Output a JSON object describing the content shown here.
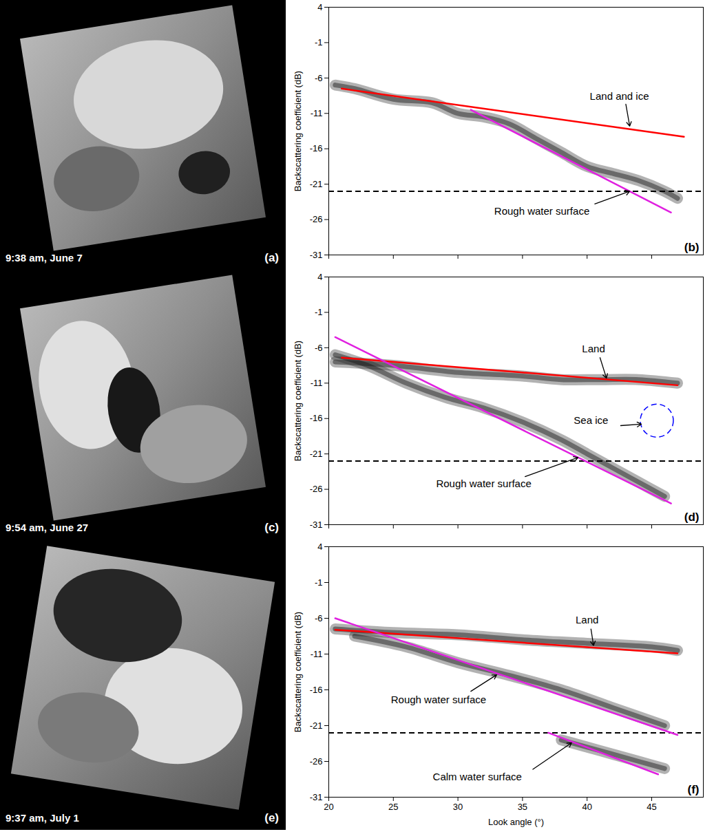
{
  "chart_data": [
    {
      "type": "line",
      "label": "(b)",
      "y_label": "Backscattering coefficient (dB)",
      "xlim": [
        20,
        49
      ],
      "xticks": [
        20,
        25,
        30,
        35,
        40,
        45
      ],
      "ylim": [
        -31,
        4
      ],
      "yticks": [
        4,
        -1,
        -6,
        -11,
        -16,
        -21,
        -26,
        -31
      ],
      "tick_labels": "y",
      "hline": {
        "value": -22,
        "color": "#000000",
        "line_style": "dashed"
      },
      "density": [
        {
          "x": [
            20.5,
            22,
            25,
            28,
            30,
            32,
            34,
            36,
            38,
            40,
            42,
            44,
            46,
            47
          ],
          "y": [
            -7,
            -7.5,
            -9,
            -9.5,
            -11,
            -11.5,
            -12.5,
            -14.5,
            -16.5,
            -18.5,
            -19.5,
            -20.5,
            -22,
            -23
          ]
        }
      ],
      "series": [
        {
          "name": "Land and ice",
          "color": "#ff0000",
          "x": [
            21,
            47.5
          ],
          "y": [
            -7.5,
            -14.3
          ],
          "label_pos": {
            "x": 42.5,
            "y": -8.6
          },
          "arrow": {
            "x1": 43,
            "y1": -9.7,
            "x2": 43.3,
            "y2": -12.8
          }
        },
        {
          "name": "Rough water surface",
          "color": "#e020e0",
          "x": [
            31,
            46.5
          ],
          "y": [
            -10.5,
            -25
          ],
          "label_pos": {
            "x": 36.5,
            "y": -24.8
          },
          "arrow": {
            "x1": 40.6,
            "y1": -23.8,
            "x2": 43.3,
            "y2": -22
          }
        }
      ],
      "annotations": []
    },
    {
      "type": "line",
      "label": "(d)",
      "y_label": "Backscattering coefficient (dB)",
      "xlim": [
        20,
        49
      ],
      "xticks": [
        20,
        25,
        30,
        35,
        40,
        45
      ],
      "ylim": [
        -31,
        4
      ],
      "yticks": [
        4,
        -1,
        -6,
        -11,
        -16,
        -21,
        -26,
        -31
      ],
      "tick_labels": "y",
      "hline": {
        "value": -22,
        "color": "#000000",
        "line_style": "dashed"
      },
      "density": [
        {
          "x": [
            20.5,
            25,
            30,
            35,
            38,
            41,
            44,
            47
          ],
          "y": [
            -8,
            -8.5,
            -9.5,
            -10,
            -10.5,
            -10.5,
            -10.5,
            -11
          ]
        },
        {
          "x": [
            20.5,
            23,
            26,
            29,
            32,
            35,
            38,
            40,
            42,
            44,
            46
          ],
          "y": [
            -7,
            -8.5,
            -11,
            -13,
            -14.5,
            -16.5,
            -19,
            -21,
            -23,
            -25,
            -27
          ]
        }
      ],
      "series": [
        {
          "name": "Land",
          "color": "#ff0000",
          "x": [
            21,
            47
          ],
          "y": [
            -7.4,
            -11.3
          ],
          "label_pos": {
            "x": 40.5,
            "y": -6.2
          },
          "arrow": {
            "x1": 41,
            "y1": -7.4,
            "x2": 41.5,
            "y2": -10.3
          }
        },
        {
          "name": "Rough water surface",
          "color": "#e020e0",
          "x": [
            20.5,
            46.5
          ],
          "y": [
            -4.5,
            -28
          ],
          "label_pos": {
            "x": 32,
            "y": -25.2
          },
          "arrow": {
            "x1": 35.2,
            "y1": -24.2,
            "x2": 39.3,
            "y2": -21.5
          }
        }
      ],
      "annotations": [
        {
          "text": "Sea ice",
          "x": 40.3,
          "y": -16.3,
          "arrow": {
            "x1": 42.6,
            "y1": -17,
            "x2": 44.2,
            "y2": -16.8
          },
          "circle": {
            "x": 45.4,
            "y": -16.3,
            "color": "#0000ff",
            "line_style": "dashed"
          }
        }
      ]
    },
    {
      "type": "line",
      "label": "(f)",
      "y_label": "Backscattering coefficient (dB)",
      "x_label": "Look angle (°)",
      "xlim": [
        20,
        49
      ],
      "xticks": [
        20,
        25,
        30,
        35,
        40,
        45
      ],
      "ylim": [
        -31,
        4
      ],
      "yticks": [
        4,
        -1,
        -6,
        -11,
        -16,
        -21,
        -26,
        -31
      ],
      "hline": {
        "value": -22,
        "color": "#000000",
        "line_style": "dashed"
      },
      "density": [
        {
          "x": [
            20.5,
            25,
            30,
            35,
            40,
            45,
            47
          ],
          "y": [
            -7.5,
            -8,
            -8.3,
            -9,
            -9.5,
            -10,
            -10.5
          ]
        },
        {
          "x": [
            22,
            26,
            30,
            34,
            38,
            42,
            46
          ],
          "y": [
            -8.5,
            -10,
            -12.2,
            -14,
            -16,
            -18.5,
            -21
          ]
        },
        {
          "x": [
            38,
            41,
            44,
            46
          ],
          "y": [
            -23,
            -24.5,
            -26,
            -27
          ]
        }
      ],
      "series": [
        {
          "name": "Land",
          "color": "#ff0000",
          "x": [
            20.5,
            47
          ],
          "y": [
            -7.6,
            -10.9
          ],
          "label_pos": {
            "x": 40,
            "y": -6.3
          },
          "arrow": {
            "x1": 40.3,
            "y1": -7.5,
            "x2": 40.5,
            "y2": -9.8
          }
        },
        {
          "name": "Rough water surface",
          "color": "#e020e0",
          "x": [
            20.5,
            47
          ],
          "y": [
            -6,
            -22.3
          ],
          "label_pos": {
            "x": 28.5,
            "y": -17.4
          },
          "arrow": {
            "x1": 31,
            "y1": -16.2,
            "x2": 33,
            "y2": -13.9
          }
        },
        {
          "name": "Calm water surface",
          "color": "#e020e0",
          "x": [
            37,
            45.5
          ],
          "y": [
            -22,
            -27.8
          ],
          "label_pos": {
            "x": 31.5,
            "y": -28.2
          },
          "arrow": {
            "x1": 35.8,
            "y1": -27.1,
            "x2": 38.8,
            "y2": -23.4
          }
        }
      ],
      "annotations": []
    }
  ],
  "images": [
    {
      "caption": "9:38 am, June 7",
      "label": "(a)"
    },
    {
      "caption": "9:54 am, June 27",
      "label": "(c)"
    },
    {
      "caption": "9:37 am, July 1",
      "label": "(e)"
    }
  ]
}
